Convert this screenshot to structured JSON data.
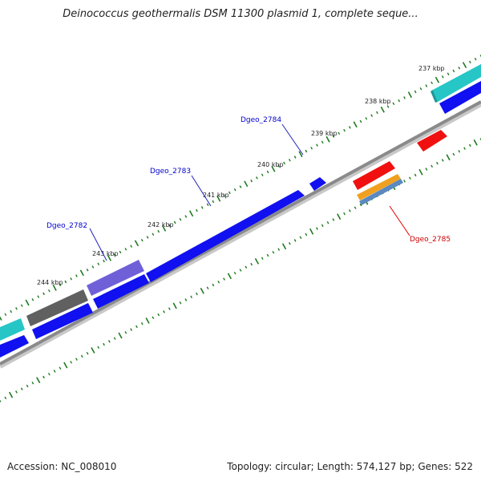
{
  "title": "Deinococcus geothermalis DSM 11300 plasmid 1, complete seque...",
  "footer": {
    "accession": "Accession: NC_008010",
    "summary": "Topology: circular; Length: 574,127 bp; Genes: 522"
  },
  "colors": {
    "backbone": "#8a8a8a",
    "ticks": "#1e7a1e",
    "blue": "#1010f0",
    "teal": "#26c6c6",
    "purple": "#7060d8",
    "gray": "#606060",
    "red": "#f01010",
    "orange": "#f0a020",
    "steel": "#5a88c0",
    "label_blue": "#0000cc",
    "label_red": "#cc0000"
  },
  "kbp_labels": [
    "237 kbp",
    "238 kbp",
    "239 kbp",
    "240 kbp",
    "241 kbp",
    "242 kbp",
    "243 kbp",
    "244 kbp"
  ],
  "gene_labels": [
    {
      "text": "Dgeo_2784",
      "color": "label_blue"
    },
    {
      "text": "Dgeo_2783",
      "color": "label_blue"
    },
    {
      "text": "Dgeo_2782",
      "color": "label_blue"
    },
    {
      "text": "Dgeo_2785",
      "color": "label_red"
    }
  ]
}
